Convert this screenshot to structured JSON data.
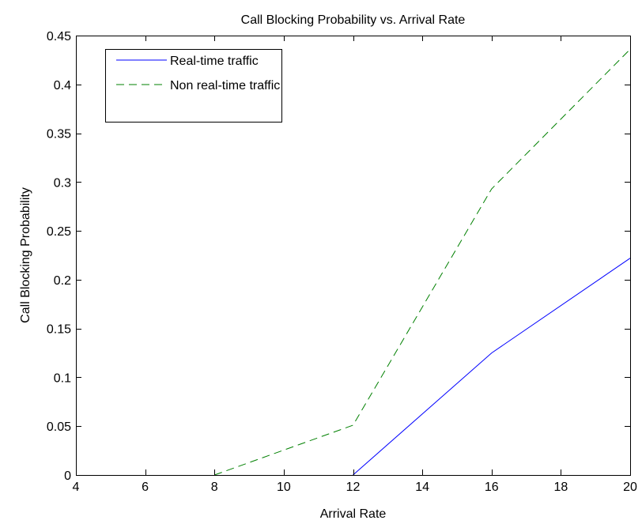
{
  "chart_data": {
    "type": "line",
    "title": "Call Blocking Probability vs. Arrival Rate",
    "xlabel": "Arrival Rate",
    "ylabel": "Call Blocking Probability",
    "xlim": [
      4,
      20
    ],
    "ylim": [
      0,
      0.45
    ],
    "xticks": [
      4,
      6,
      8,
      10,
      12,
      14,
      16,
      18,
      20
    ],
    "yticks": [
      0,
      0.05,
      0.1,
      0.15,
      0.2,
      0.25,
      0.3,
      0.35,
      0.4,
      0.45
    ],
    "grid": false,
    "legend_position": "top-left",
    "series": [
      {
        "name": "Real-time traffic",
        "color": "#0000ff",
        "style": "solid",
        "x": [
          12,
          16,
          20
        ],
        "y": [
          0,
          0.125,
          0.222
        ]
      },
      {
        "name": "Non real-time traffic",
        "color": "#008000",
        "style": "dashed",
        "x": [
          8,
          12,
          16,
          20
        ],
        "y": [
          0,
          0.051,
          0.293,
          0.436
        ]
      }
    ]
  }
}
